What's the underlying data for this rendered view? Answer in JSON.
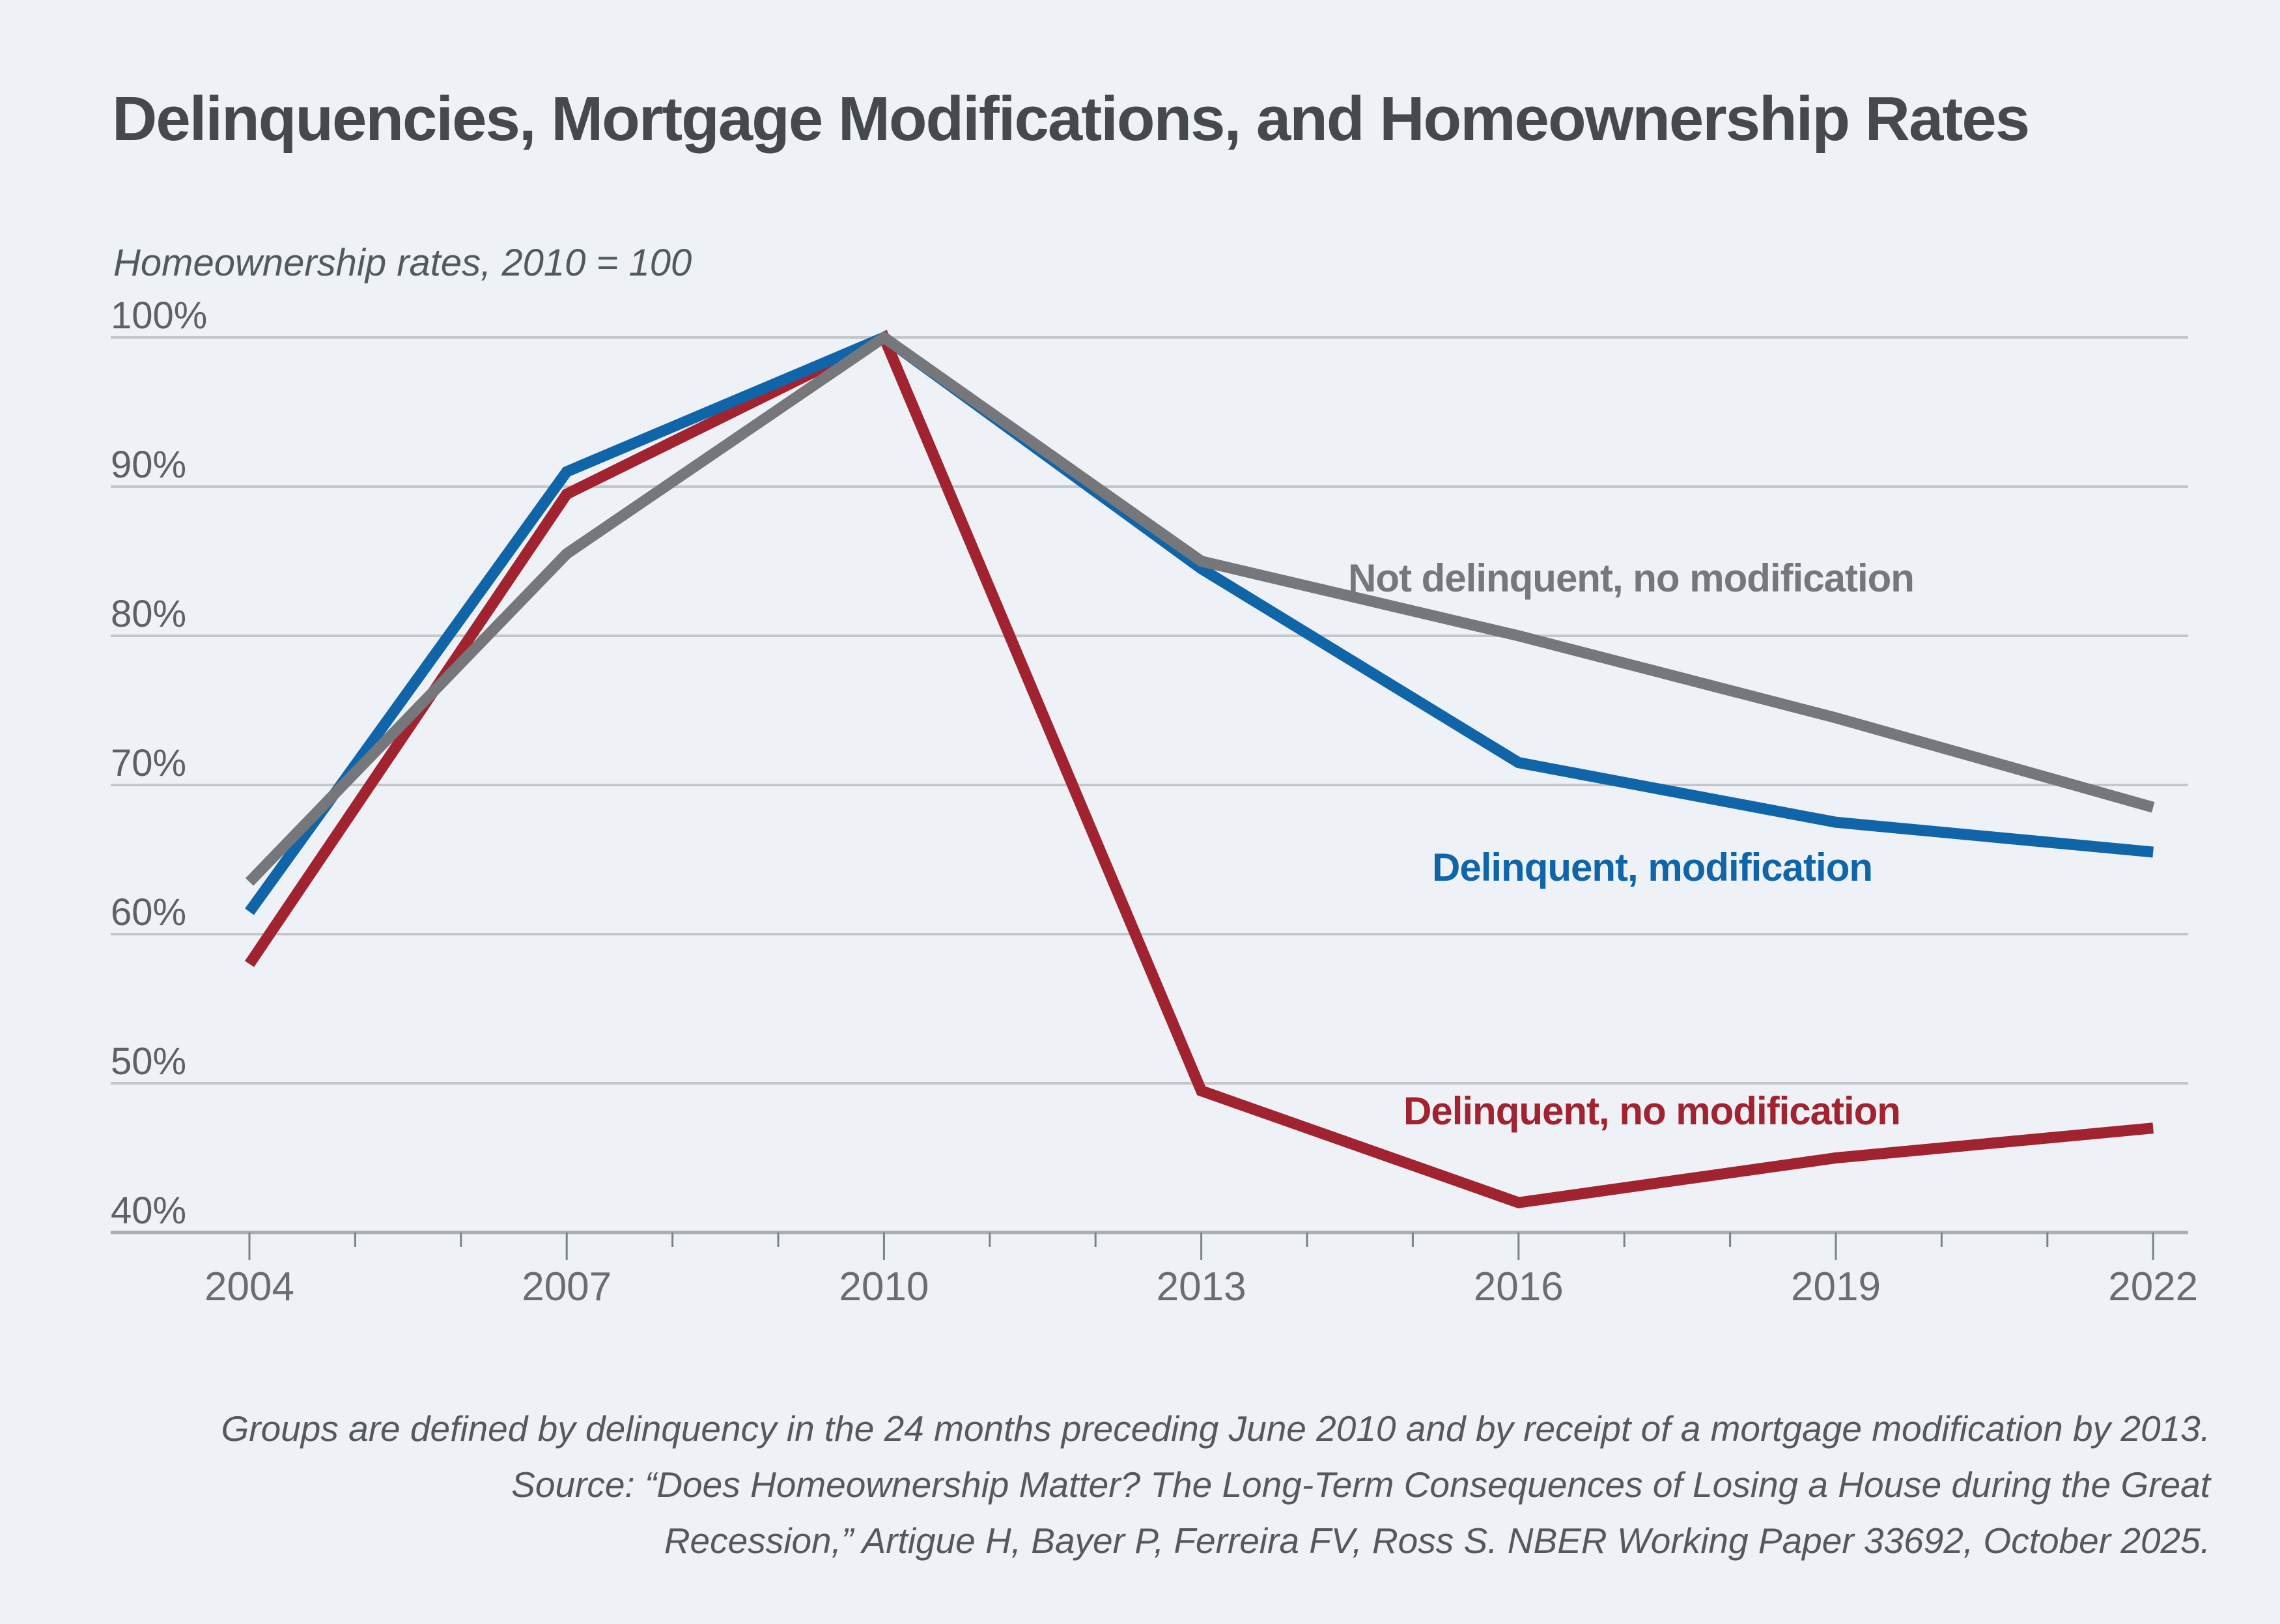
{
  "page": {
    "background_color": "#eef2f7"
  },
  "chart_data": {
    "type": "line",
    "title": "Delinquencies, Mortgage Modifications, and Homeownership Rates",
    "subtitle": "Homeownership rates, 2010 = 100",
    "x": [
      2004,
      2007,
      2010,
      2013,
      2016,
      2019,
      2022
    ],
    "x_minor_tick_step_years": 1,
    "x_major_tick_step_years": 3,
    "xlabel": "",
    "ylabel": "",
    "ylim": [
      40,
      100
    ],
    "grid": true,
    "legend_position": "inline-labels-on-chart",
    "y_ticks": [
      {
        "label": "100%",
        "value": 100
      },
      {
        "label": "90%",
        "value": 90
      },
      {
        "label": "80%",
        "value": 80
      },
      {
        "label": "70%",
        "value": 70
      },
      {
        "label": "60%",
        "value": 60
      },
      {
        "label": "50%",
        "value": 50
      },
      {
        "label": "40%",
        "value": 40
      }
    ],
    "x_tick_labels": [
      "2004",
      "2007",
      "2010",
      "2013",
      "2016",
      "2019",
      "2022"
    ],
    "series": [
      {
        "name": "Delinquent, no modification",
        "color": "#a22330",
        "values": [
          58,
          89.5,
          100,
          49.5,
          42,
          45,
          47
        ]
      },
      {
        "name": "Delinquent, modification",
        "color": "#1065a9",
        "values": [
          61.5,
          91,
          100,
          84.5,
          71.5,
          67.5,
          65.5
        ]
      },
      {
        "name": "Not delinquent, no modification",
        "color": "#76777a",
        "values": [
          63.5,
          85.5,
          100,
          85,
          80,
          74.5,
          68.5
        ]
      }
    ],
    "colors": {
      "gridline": "#c4c7ca",
      "axis_line": "#abaeb1",
      "tick_mark": "#7d8286",
      "axis_label": "#5d6166"
    }
  },
  "footer": {
    "lines": [
      "Groups are defined by delinquency in the 24 months preceding June 2010 and by receipt of a mortgage modification by 2013.",
      "Source: “Does Homeownership Matter? The Long-Term Consequences of Losing a House during the Great",
      "Recession,” Artigue H, Bayer P, Ferreira FV, Ross S. NBER Working Paper 33692, October 2025."
    ]
  }
}
